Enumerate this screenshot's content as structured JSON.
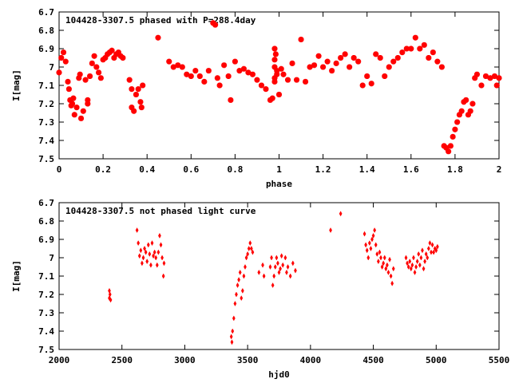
{
  "chart_data": [
    {
      "type": "scatter",
      "title": "104428-3307.5 phased with P=288.4day",
      "xlabel": "phase",
      "ylabel": "I[mag]",
      "xlim": [
        0,
        2
      ],
      "ylim": [
        7.5,
        6.7
      ],
      "y_inverted": true,
      "x_ticks": [
        "0",
        "0.2",
        "0.4",
        "0.6",
        "0.8",
        "1",
        "1.2",
        "1.4",
        "1.6",
        "1.8",
        "2"
      ],
      "y_ticks": [
        "6.7",
        "6.8",
        "6.9",
        "7",
        "7.1",
        "7.2",
        "7.3",
        "7.4",
        "7.5"
      ],
      "marker": "plus-bold",
      "color": "#ff0000",
      "series": [
        {
          "values": [
            [
              0.0,
              7.03
            ],
            [
              0.01,
              6.95
            ],
            [
              0.02,
              6.92
            ],
            [
              0.03,
              6.97
            ],
            [
              0.04,
              7.08
            ],
            [
              0.045,
              7.12
            ],
            [
              0.05,
              7.18
            ],
            [
              0.055,
              7.21
            ],
            [
              0.06,
              7.2
            ],
            [
              0.065,
              7.17
            ],
            [
              0.07,
              7.26
            ],
            [
              0.08,
              7.22
            ],
            [
              0.09,
              7.06
            ],
            [
              0.095,
              7.04
            ],
            [
              0.1,
              7.28
            ],
            [
              0.11,
              7.24
            ],
            [
              0.12,
              7.07
            ],
            [
              0.13,
              7.18
            ],
            [
              0.13,
              7.2
            ],
            [
              0.14,
              7.05
            ],
            [
              0.15,
              6.98
            ],
            [
              0.16,
              6.94
            ],
            [
              0.17,
              7.0
            ],
            [
              0.18,
              7.03
            ],
            [
              0.19,
              7.06
            ],
            [
              0.2,
              6.96
            ],
            [
              0.21,
              6.95
            ],
            [
              0.22,
              6.93
            ],
            [
              0.23,
              6.92
            ],
            [
              0.24,
              6.91
            ],
            [
              0.25,
              6.95
            ],
            [
              0.26,
              6.93
            ],
            [
              0.27,
              6.92
            ],
            [
              0.28,
              6.94
            ],
            [
              0.29,
              6.95
            ],
            [
              0.32,
              7.07
            ],
            [
              0.33,
              7.12
            ],
            [
              0.33,
              7.22
            ],
            [
              0.34,
              7.24
            ],
            [
              0.35,
              7.15
            ],
            [
              0.36,
              7.12
            ],
            [
              0.37,
              7.19
            ],
            [
              0.375,
              7.22
            ],
            [
              0.38,
              7.1
            ],
            [
              0.45,
              6.84
            ],
            [
              0.5,
              6.97
            ],
            [
              0.52,
              7.0
            ],
            [
              0.54,
              6.99
            ],
            [
              0.56,
              7.0
            ],
            [
              0.58,
              7.04
            ],
            [
              0.6,
              7.05
            ],
            [
              0.62,
              7.02
            ],
            [
              0.64,
              7.05
            ],
            [
              0.66,
              7.08
            ],
            [
              0.68,
              7.02
            ],
            [
              0.7,
              6.76
            ],
            [
              0.71,
              6.77
            ],
            [
              0.72,
              7.06
            ],
            [
              0.73,
              7.1
            ],
            [
              0.75,
              6.99
            ],
            [
              0.77,
              7.05
            ],
            [
              0.78,
              7.18
            ],
            [
              0.8,
              6.97
            ],
            [
              0.82,
              7.02
            ],
            [
              0.84,
              7.01
            ],
            [
              0.86,
              7.03
            ],
            [
              0.88,
              7.04
            ],
            [
              0.9,
              7.07
            ],
            [
              0.92,
              7.1
            ],
            [
              0.94,
              7.12
            ],
            [
              0.96,
              7.18
            ],
            [
              0.97,
              7.17
            ],
            [
              0.98,
              6.9
            ],
            [
              0.98,
              6.96
            ],
            [
              0.98,
              7.0
            ],
            [
              0.98,
              7.06
            ],
            [
              0.98,
              7.08
            ],
            [
              0.985,
              6.93
            ],
            [
              0.99,
              7.02
            ],
            [
              0.99,
              7.04
            ],
            [
              1.0,
              7.15
            ],
            [
              1.01,
              7.01
            ],
            [
              1.02,
              7.04
            ],
            [
              1.04,
              7.07
            ],
            [
              1.06,
              6.98
            ],
            [
              1.08,
              7.07
            ],
            [
              1.1,
              6.85
            ],
            [
              1.12,
              7.08
            ],
            [
              1.14,
              7.0
            ],
            [
              1.16,
              6.99
            ],
            [
              1.18,
              6.94
            ],
            [
              1.2,
              7.0
            ],
            [
              1.22,
              6.97
            ],
            [
              1.24,
              7.02
            ],
            [
              1.26,
              6.98
            ],
            [
              1.28,
              6.95
            ],
            [
              1.3,
              6.93
            ],
            [
              1.32,
              7.0
            ],
            [
              1.34,
              6.95
            ],
            [
              1.36,
              6.97
            ],
            [
              1.38,
              7.1
            ],
            [
              1.4,
              7.05
            ],
            [
              1.42,
              7.09
            ],
            [
              1.44,
              6.93
            ],
            [
              1.46,
              6.95
            ],
            [
              1.48,
              7.05
            ],
            [
              1.5,
              7.0
            ],
            [
              1.52,
              6.97
            ],
            [
              1.54,
              6.95
            ],
            [
              1.56,
              6.92
            ],
            [
              1.58,
              6.9
            ],
            [
              1.6,
              6.9
            ],
            [
              1.62,
              6.84
            ],
            [
              1.64,
              6.9
            ],
            [
              1.66,
              6.88
            ],
            [
              1.68,
              6.95
            ],
            [
              1.7,
              6.92
            ],
            [
              1.72,
              6.97
            ],
            [
              1.74,
              7.0
            ],
            [
              1.75,
              7.43
            ],
            [
              1.76,
              7.44
            ],
            [
              1.77,
              7.46
            ],
            [
              1.78,
              7.43
            ],
            [
              1.79,
              7.38
            ],
            [
              1.8,
              7.34
            ],
            [
              1.81,
              7.3
            ],
            [
              1.82,
              7.26
            ],
            [
              1.83,
              7.24
            ],
            [
              1.84,
              7.19
            ],
            [
              1.85,
              7.18
            ],
            [
              1.86,
              7.26
            ],
            [
              1.87,
              7.24
            ],
            [
              1.88,
              7.2
            ],
            [
              1.89,
              7.06
            ],
            [
              1.9,
              7.04
            ],
            [
              1.92,
              7.1
            ],
            [
              1.94,
              7.05
            ],
            [
              1.96,
              7.06
            ],
            [
              1.98,
              7.05
            ],
            [
              1.99,
              7.1
            ],
            [
              2.0,
              7.06
            ]
          ]
        }
      ]
    },
    {
      "type": "scatter",
      "title": "104428-3307.5 not phased light curve",
      "xlabel": "hjd0",
      "ylabel": "I[mag]",
      "xlim": [
        2000,
        5500
      ],
      "ylim": [
        7.5,
        6.7
      ],
      "y_inverted": true,
      "x_ticks": [
        "2000",
        "2500",
        "3000",
        "3500",
        "4000",
        "4500",
        "5000",
        "5500"
      ],
      "y_ticks": [
        "6.7",
        "6.8",
        "6.9",
        "7",
        "7.1",
        "7.2",
        "7.3",
        "7.4",
        "7.5"
      ],
      "marker": "diamond",
      "color": "#ff0000",
      "series": [
        {
          "values": [
            [
              2400,
              7.18
            ],
            [
              2400,
              7.22
            ],
            [
              2405,
              7.2
            ],
            [
              2410,
              7.23
            ],
            [
              2620,
              6.85
            ],
            [
              2630,
              6.92
            ],
            [
              2640,
              6.99
            ],
            [
              2650,
              6.96
            ],
            [
              2660,
              7.03
            ],
            [
              2670,
              7.0
            ],
            [
              2680,
              6.95
            ],
            [
              2690,
              6.97
            ],
            [
              2700,
              7.02
            ],
            [
              2710,
              6.93
            ],
            [
              2720,
              6.98
            ],
            [
              2730,
              7.04
            ],
            [
              2740,
              6.92
            ],
            [
              2750,
              6.99
            ],
            [
              2760,
              6.97
            ],
            [
              2770,
              7.0
            ],
            [
              2780,
              7.04
            ],
            [
              2790,
              6.97
            ],
            [
              2800,
              6.88
            ],
            [
              2810,
              6.93
            ],
            [
              2820,
              7.0
            ],
            [
              2830,
              7.1
            ],
            [
              2835,
              7.03
            ],
            [
              3370,
              7.43
            ],
            [
              3375,
              7.46
            ],
            [
              3380,
              7.4
            ],
            [
              3390,
              7.33
            ],
            [
              3400,
              7.25
            ],
            [
              3410,
              7.2
            ],
            [
              3420,
              7.15
            ],
            [
              3430,
              7.12
            ],
            [
              3440,
              7.08
            ],
            [
              3450,
              7.22
            ],
            [
              3460,
              7.18
            ],
            [
              3470,
              7.1
            ],
            [
              3480,
              7.05
            ],
            [
              3490,
              7.0
            ],
            [
              3500,
              6.98
            ],
            [
              3510,
              6.95
            ],
            [
              3520,
              6.92
            ],
            [
              3530,
              6.95
            ],
            [
              3540,
              6.97
            ],
            [
              3590,
              7.08
            ],
            [
              3620,
              7.04
            ],
            [
              3630,
              7.1
            ],
            [
              3680,
              7.05
            ],
            [
              3690,
              7.0
            ],
            [
              3700,
              7.15
            ],
            [
              3710,
              7.1
            ],
            [
              3720,
              7.05
            ],
            [
              3730,
              7.0
            ],
            [
              3740,
              7.03
            ],
            [
              3750,
              7.08
            ],
            [
              3760,
              7.06
            ],
            [
              3770,
              6.99
            ],
            [
              3780,
              7.04
            ],
            [
              3800,
              7.0
            ],
            [
              3810,
              7.08
            ],
            [
              3820,
              7.05
            ],
            [
              3840,
              7.1
            ],
            [
              3860,
              7.03
            ],
            [
              3880,
              7.07
            ],
            [
              4160,
              6.85
            ],
            [
              4240,
              6.76
            ],
            [
              4430,
              6.87
            ],
            [
              4440,
              6.93
            ],
            [
              4450,
              6.96
            ],
            [
              4460,
              7.0
            ],
            [
              4470,
              6.92
            ],
            [
              4480,
              6.95
            ],
            [
              4490,
              6.9
            ],
            [
              4500,
              6.88
            ],
            [
              4510,
              6.85
            ],
            [
              4520,
              6.93
            ],
            [
              4530,
              6.98
            ],
            [
              4540,
              7.02
            ],
            [
              4550,
              6.97
            ],
            [
              4560,
              7.0
            ],
            [
              4570,
              7.05
            ],
            [
              4580,
              7.03
            ],
            [
              4590,
              7.0
            ],
            [
              4600,
              7.06
            ],
            [
              4610,
              7.04
            ],
            [
              4620,
              7.08
            ],
            [
              4630,
              7.01
            ],
            [
              4640,
              7.1
            ],
            [
              4650,
              7.14
            ],
            [
              4660,
              7.06
            ],
            [
              4760,
              7.0
            ],
            [
              4770,
              7.03
            ],
            [
              4780,
              7.05
            ],
            [
              4790,
              7.02
            ],
            [
              4800,
              7.06
            ],
            [
              4810,
              7.04
            ],
            [
              4820,
              7.0
            ],
            [
              4830,
              7.08
            ],
            [
              4840,
              7.05
            ],
            [
              4850,
              7.02
            ],
            [
              4860,
              6.98
            ],
            [
              4870,
              7.04
            ],
            [
              4880,
              7.0
            ],
            [
              4890,
              6.96
            ],
            [
              4900,
              7.06
            ],
            [
              4910,
              7.02
            ],
            [
              4920,
              6.98
            ],
            [
              4930,
              7.0
            ],
            [
              4940,
              6.95
            ],
            [
              4950,
              6.92
            ],
            [
              4960,
              6.97
            ],
            [
              4970,
              6.93
            ],
            [
              4980,
              6.97
            ],
            [
              4990,
              6.95
            ],
            [
              5000,
              6.96
            ],
            [
              5010,
              6.94
            ]
          ]
        }
      ]
    }
  ]
}
